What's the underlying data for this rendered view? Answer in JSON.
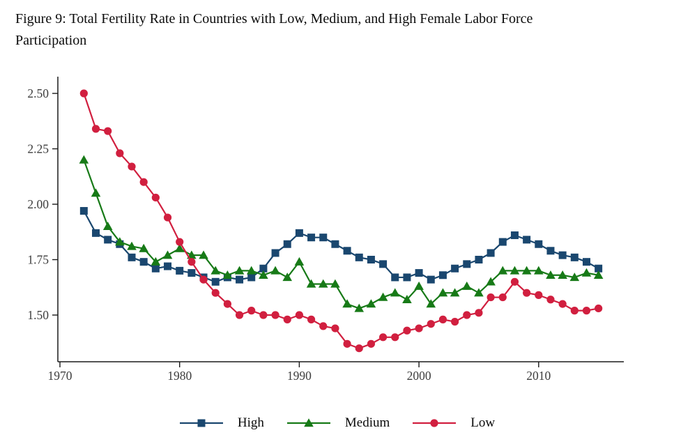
{
  "figure": {
    "title_lines": [
      "Figure 9: Total Fertility Rate in Countries with Low, Medium, and High Female Labor Force",
      "Participation"
    ]
  },
  "chart_data": {
    "type": "line",
    "title": "Figure 9: Total Fertility Rate in Countries with Low, Medium, and High Female Labor Force Participation",
    "xlabel": "",
    "ylabel": "",
    "grid": false,
    "legend_position": "bottom",
    "xlim": [
      1969.8,
      2017.2
    ],
    "ylim": [
      1.3,
      2.55
    ],
    "x_ticks": [
      "1970",
      "1980",
      "1990",
      "2000",
      "2010"
    ],
    "y_ticks": [
      "2.50",
      "2.25",
      "2.00",
      "1.75",
      "1.50"
    ],
    "axis_color": "#1a1a1a",
    "tick_label_color": "#3d3d3d",
    "x": [
      1972,
      1973,
      1974,
      1975,
      1976,
      1977,
      1978,
      1979,
      1980,
      1981,
      1982,
      1983,
      1984,
      1985,
      1986,
      1987,
      1988,
      1989,
      1990,
      1991,
      1992,
      1993,
      1994,
      1995,
      1996,
      1997,
      1998,
      1999,
      2000,
      2001,
      2002,
      2003,
      2004,
      2005,
      2006,
      2007,
      2008,
      2009,
      2010,
      2011,
      2012,
      2013,
      2014,
      2015
    ],
    "series": [
      {
        "name": "High",
        "marker": "square",
        "color": "#1a476f",
        "values": [
          1.97,
          1.87,
          1.84,
          1.82,
          1.76,
          1.74,
          1.71,
          1.72,
          1.7,
          1.69,
          1.67,
          1.65,
          1.67,
          1.66,
          1.67,
          1.71,
          1.78,
          1.82,
          1.87,
          1.85,
          1.85,
          1.82,
          1.79,
          1.76,
          1.75,
          1.73,
          1.67,
          1.67,
          1.69,
          1.66,
          1.68,
          1.71,
          1.73,
          1.75,
          1.78,
          1.83,
          1.86,
          1.84,
          1.82,
          1.79,
          1.77,
          1.76,
          1.74,
          1.71
        ]
      },
      {
        "name": "Medium",
        "marker": "triangle",
        "color": "#177a17",
        "values": [
          2.2,
          2.05,
          1.9,
          1.83,
          1.81,
          1.8,
          1.74,
          1.77,
          1.8,
          1.77,
          1.77,
          1.7,
          1.68,
          1.7,
          1.7,
          1.68,
          1.7,
          1.67,
          1.74,
          1.64,
          1.64,
          1.64,
          1.55,
          1.53,
          1.55,
          1.58,
          1.6,
          1.57,
          1.63,
          1.55,
          1.6,
          1.6,
          1.63,
          1.6,
          1.65,
          1.7,
          1.7,
          1.7,
          1.7,
          1.68,
          1.68,
          1.67,
          1.69,
          1.68
        ]
      },
      {
        "name": "Low",
        "marker": "circle",
        "color": "#d11f3f",
        "values": [
          2.5,
          2.34,
          2.33,
          2.23,
          2.17,
          2.1,
          2.03,
          1.94,
          1.83,
          1.74,
          1.66,
          1.6,
          1.55,
          1.5,
          1.52,
          1.5,
          1.5,
          1.48,
          1.5,
          1.48,
          1.45,
          1.44,
          1.37,
          1.35,
          1.37,
          1.4,
          1.4,
          1.43,
          1.44,
          1.46,
          1.48,
          1.47,
          1.5,
          1.51,
          1.58,
          1.58,
          1.65,
          1.6,
          1.59,
          1.57,
          1.55,
          1.52,
          1.52,
          1.53
        ]
      }
    ]
  }
}
